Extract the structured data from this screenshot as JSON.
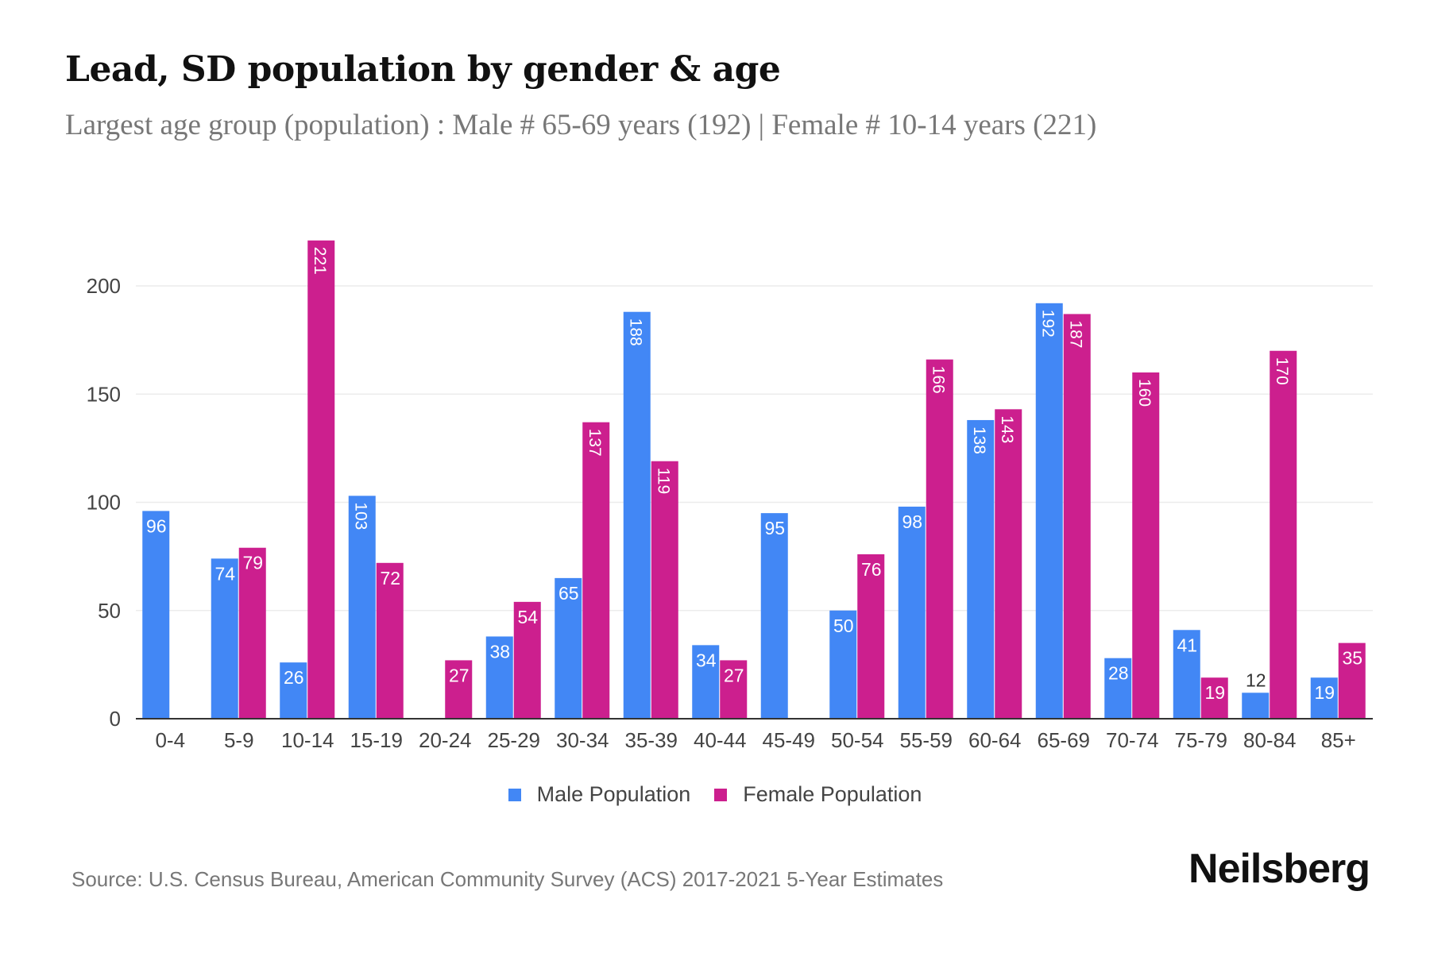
{
  "title": "Lead, SD population by gender & age",
  "subtitle": "Largest age group (population) : Male # 65-69 years (192) | Female # 10-14 years (221)",
  "source": "Source: U.S. Census Bureau, American Community Survey (ACS) 2017-2021 5-Year Estimates",
  "logo": "Neilsberg",
  "chart_data": {
    "type": "bar",
    "categories": [
      "0-4",
      "5-9",
      "10-14",
      "15-19",
      "20-24",
      "25-29",
      "30-34",
      "35-39",
      "40-44",
      "45-49",
      "50-54",
      "55-59",
      "60-64",
      "65-69",
      "70-74",
      "75-79",
      "80-84",
      "85+"
    ],
    "series": [
      {
        "name": "Male Population",
        "color": "#4287f5",
        "values": [
          96,
          74,
          26,
          103,
          0,
          38,
          65,
          188,
          34,
          95,
          50,
          98,
          138,
          192,
          28,
          41,
          12,
          19
        ]
      },
      {
        "name": "Female Population",
        "color": "#cc1f8e",
        "values": [
          0,
          79,
          221,
          72,
          27,
          54,
          137,
          119,
          27,
          0,
          76,
          166,
          143,
          187,
          160,
          19,
          170,
          35
        ]
      }
    ],
    "yticks": [
      0,
      50,
      100,
      150,
      200
    ],
    "ylim": [
      0,
      221
    ],
    "grid": true,
    "legend": "bottom"
  }
}
